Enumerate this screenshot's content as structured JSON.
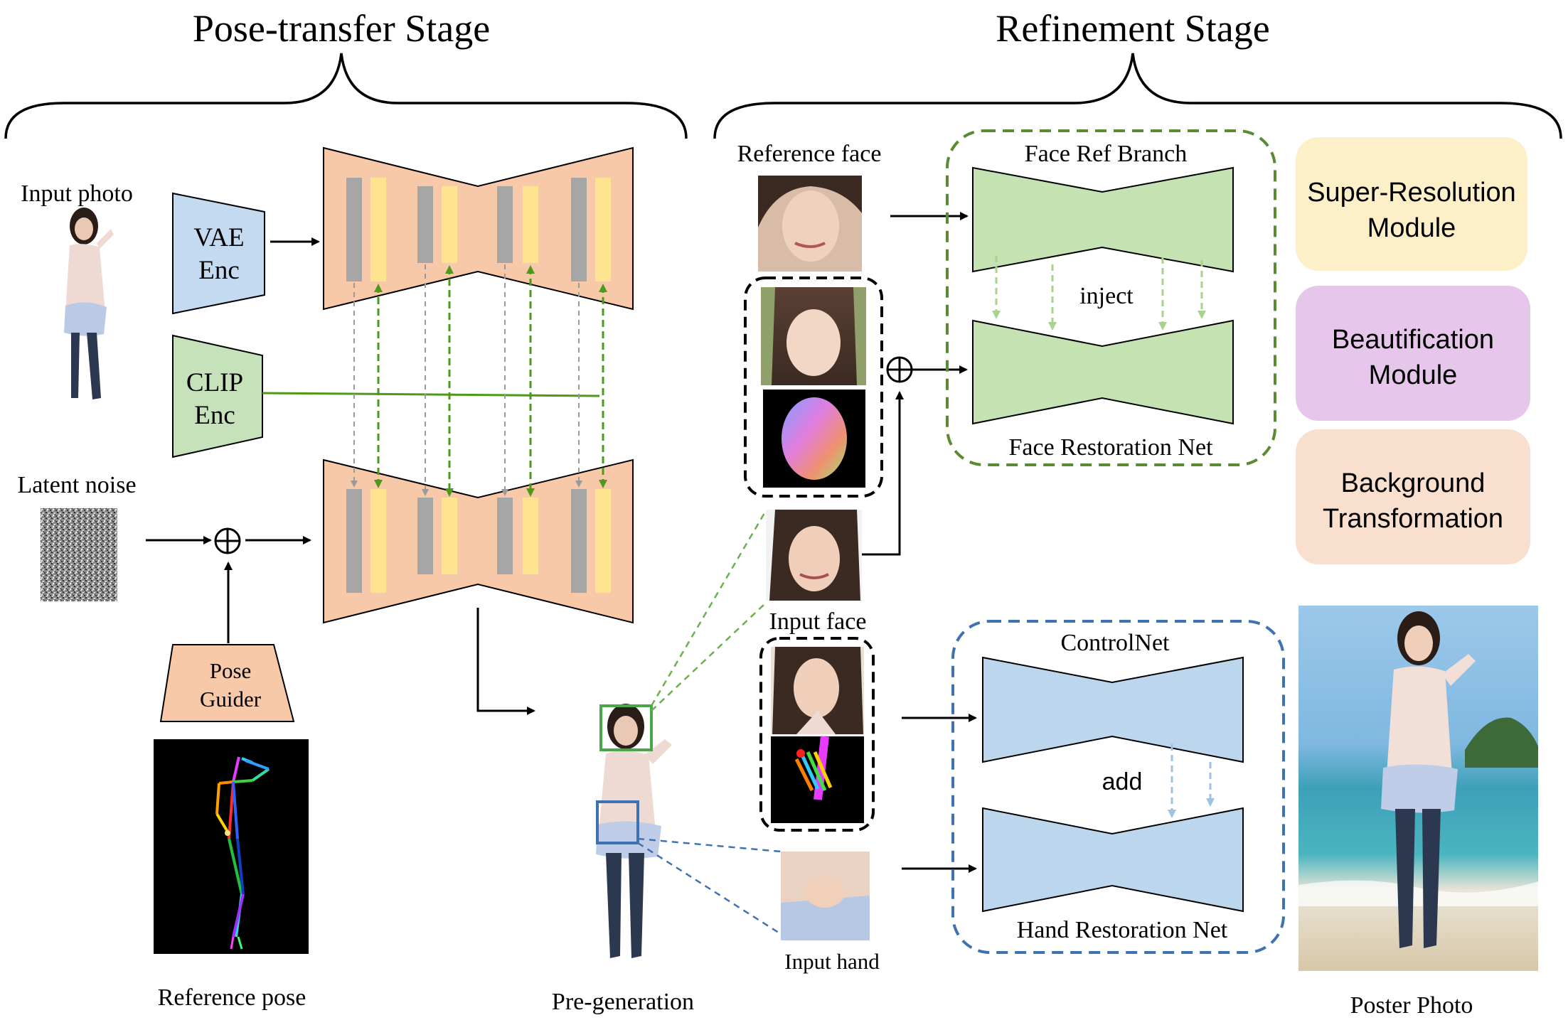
{
  "stages": {
    "pose_transfer": "Pose-transfer Stage",
    "refinement": "Refinement Stage"
  },
  "labels": {
    "input_photo": "Input photo",
    "latent_noise": "Latent noise",
    "reference_pose": "Reference pose",
    "pre_generation": "Pre-generation",
    "reference_face": "Reference face",
    "input_face": "Input face",
    "input_hand": "Input hand",
    "poster_photo": "Poster Photo",
    "inject": "inject",
    "add": "add"
  },
  "encoders": {
    "vae": [
      "VAE",
      "Enc"
    ],
    "clip": [
      "CLIP",
      "Enc"
    ],
    "pose_guider": [
      "Pose",
      "Guider"
    ]
  },
  "networks": {
    "face_ref_branch": "Face Ref Branch",
    "face_restoration": "Face Restoration Net",
    "controlnet": "ControlNet",
    "hand_restoration": "Hand Restoration Net"
  },
  "modules": [
    {
      "lines": [
        "Super-Resolution",
        "Module"
      ],
      "color": "#fdf0c8"
    },
    {
      "lines": [
        "Beautification",
        "Module"
      ],
      "color": "#e6c6ea"
    },
    {
      "lines": [
        "Background",
        "Transformation"
      ],
      "color": "#f9dfcd"
    }
  ],
  "colors": {
    "unet_fill": "#f7c9a9",
    "vae_fill": "#c3daf0",
    "clip_fill": "#c5e2bb",
    "face_net_fill": "#c5e2b3",
    "hand_net_fill": "#bcd6ee",
    "green_dash": "#5a8a32",
    "blue_dash": "#3f72b0",
    "gray_block": "#a6a6a6",
    "yellow_block": "#fee490",
    "green_arrow": "#4e9a18"
  },
  "icons": {
    "plus": "circled-plus-icon",
    "skeleton": "pose-skeleton-icon",
    "noise": "noise-icon"
  }
}
